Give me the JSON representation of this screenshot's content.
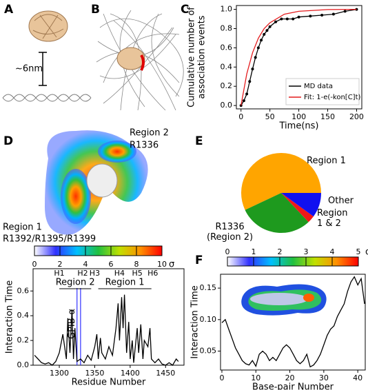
{
  "panel_labels": [
    "A",
    "B",
    "C",
    "D",
    "E",
    "F"
  ],
  "figure_text": {
    "distance": "~6nm",
    "region2": "Region 2",
    "r1336": "R1336",
    "region1": "Region 1",
    "r1392": "R1392/R1395/R1399"
  },
  "chart_data": [
    {
      "type": "line",
      "xlabel": "Time(ns)",
      "ylabel": [
        "Cumulative number of",
        "association events"
      ],
      "xlim": [
        -8,
        209
      ],
      "ylim": [
        -0.035,
        1.04
      ],
      "xticks": [
        0,
        50,
        100,
        150,
        200
      ],
      "yticks": [
        {
          "value": 0,
          "label": "0.0"
        },
        0.2,
        0.4,
        0.6,
        0.8,
        {
          "value": 1,
          "label": "1.0"
        }
      ],
      "legend": "lower right",
      "series": [
        {
          "name": "MD data",
          "color": "#000000",
          "markers": true,
          "x": [
            0,
            5,
            10,
            15,
            20,
            25,
            30,
            35,
            40,
            45,
            50,
            60,
            70,
            80,
            90,
            100,
            120,
            140,
            160,
            180,
            200
          ],
          "values": [
            0,
            0.05,
            0.12,
            0.25,
            0.38,
            0.5,
            0.6,
            0.68,
            0.74,
            0.78,
            0.82,
            0.87,
            0.9,
            0.9,
            0.9,
            0.92,
            0.93,
            0.94,
            0.95,
            0.98,
            1.0
          ]
        },
        {
          "name": "Fit: 1-e(-kon[C]t)",
          "color": "#e41a1c",
          "x": [
            0,
            10,
            20,
            30,
            40,
            50,
            75,
            100,
            150,
            200
          ],
          "values": [
            0,
            0.33,
            0.55,
            0.7,
            0.8,
            0.86,
            0.95,
            0.98,
            0.998,
            1.0
          ]
        }
      ]
    },
    {
      "type": "pie",
      "labels": [
        "Region 1",
        "R1336\n(Region 2)",
        "Region\n1 & 2",
        "Other"
      ],
      "values": [
        57,
        30,
        3,
        10
      ],
      "colors": [
        "#ffa500",
        "#1e9a1e",
        "#f01818",
        "#1010f0"
      ]
    },
    {
      "type": "line",
      "xlabel": "Residue Number",
      "ylabel": "Interaction Time",
      "xlim": [
        1263,
        1476
      ],
      "ylim": [
        0,
        0.78
      ],
      "xticks": [
        1300,
        1350,
        1400,
        1450
      ],
      "yticks": [
        {
          "value": 0,
          "label": "0.0"
        },
        0.2,
        0.4,
        0.6
      ],
      "helices": [
        {
          "label": "H1",
          "x": 1300
        },
        {
          "label": "H2",
          "x": 1333
        },
        {
          "label": "H3",
          "x": 1350
        },
        {
          "label": "H4",
          "x": 1385
        },
        {
          "label": "H5",
          "x": 1410
        },
        {
          "label": "H6",
          "x": 1432
        }
      ],
      "regions": [
        {
          "label": "Region 2",
          "x": [
            1300,
            1345
          ]
        },
        {
          "label": "Region 1",
          "x": [
            1355,
            1430
          ]
        }
      ],
      "marker": {
        "label": "GPIB-α",
        "x": [
          1325,
          1330
        ],
        "color": "#3030ff"
      },
      "series": [
        {
          "color": "#000000",
          "x": [
            1265,
            1270,
            1275,
            1280,
            1285,
            1290,
            1295,
            1300,
            1305,
            1310,
            1312,
            1315,
            1318,
            1320,
            1322,
            1325,
            1330,
            1335,
            1340,
            1345,
            1350,
            1353,
            1355,
            1358,
            1360,
            1365,
            1370,
            1375,
            1380,
            1383,
            1385,
            1388,
            1390,
            1392,
            1395,
            1398,
            1400,
            1403,
            1405,
            1410,
            1412,
            1415,
            1418,
            1420,
            1425,
            1428,
            1430,
            1435,
            1440,
            1445,
            1450,
            1455,
            1460,
            1465,
            1468
          ],
          "values": [
            0.08,
            0.05,
            0.02,
            0.01,
            0.02,
            0.0,
            0.03,
            0.1,
            0.25,
            0.05,
            0.38,
            0.1,
            0.45,
            0.05,
            0.3,
            0.03,
            0.05,
            0.02,
            0.08,
            0.04,
            0.15,
            0.25,
            0.05,
            0.22,
            0.1,
            0.05,
            0.15,
            0.08,
            0.3,
            0.5,
            0.2,
            0.55,
            0.3,
            0.57,
            0.1,
            0.35,
            0.05,
            0.2,
            0.02,
            0.3,
            0.1,
            0.33,
            0.05,
            0.2,
            0.15,
            0.3,
            0.05,
            0.02,
            0.05,
            0.01,
            0.0,
            0.02,
            0.0,
            0.05,
            0.03
          ]
        }
      ]
    },
    {
      "type": "line",
      "xlabel": "Base-pair Number",
      "ylabel": "Interaction Time",
      "xlim": [
        -0.4,
        42.2
      ],
      "ylim": [
        0.02,
        0.172
      ],
      "xticks": [
        0,
        10,
        20,
        30,
        40
      ],
      "yticks": [
        0.05,
        {
          "value": 0.1,
          "label": "0.10"
        },
        0.15
      ],
      "series": [
        {
          "color": "#000000",
          "x": [
            0,
            1,
            2,
            3,
            4,
            5,
            6,
            7,
            8,
            9,
            10,
            11,
            12,
            13,
            14,
            15,
            16,
            17,
            18,
            19,
            20,
            21,
            22,
            23,
            24,
            25,
            26,
            27,
            28,
            29,
            30,
            31,
            32,
            33,
            34,
            35,
            36,
            37,
            38,
            39,
            40,
            41,
            42
          ],
          "values": [
            0.095,
            0.1,
            0.085,
            0.07,
            0.055,
            0.045,
            0.035,
            0.03,
            0.028,
            0.035,
            0.026,
            0.045,
            0.05,
            0.045,
            0.035,
            0.04,
            0.035,
            0.045,
            0.055,
            0.06,
            0.055,
            0.045,
            0.035,
            0.03,
            0.035,
            0.045,
            0.025,
            0.028,
            0.035,
            0.045,
            0.06,
            0.075,
            0.085,
            0.09,
            0.105,
            0.115,
            0.125,
            0.145,
            0.16,
            0.168,
            0.155,
            0.165,
            0.125
          ]
        }
      ]
    },
    {
      "type": "colorbar",
      "xlim": [
        0,
        10
      ],
      "xticks": [
        0,
        2,
        4,
        6,
        8,
        10
      ],
      "unit": "σ",
      "colors": [
        "#ffffff",
        "#3030ff",
        "#00c0ff",
        "#20c040",
        "#c0e000",
        "#ff9000",
        "#ff0000"
      ]
    },
    {
      "type": "colorbar",
      "xlim": [
        0,
        5
      ],
      "xticks": [
        0,
        1,
        2,
        3,
        4,
        5
      ],
      "unit": "σ",
      "colors": [
        "#ffffff",
        "#3030ff",
        "#00c0ff",
        "#20c040",
        "#c0e000",
        "#ff9000",
        "#ff0000"
      ]
    }
  ]
}
